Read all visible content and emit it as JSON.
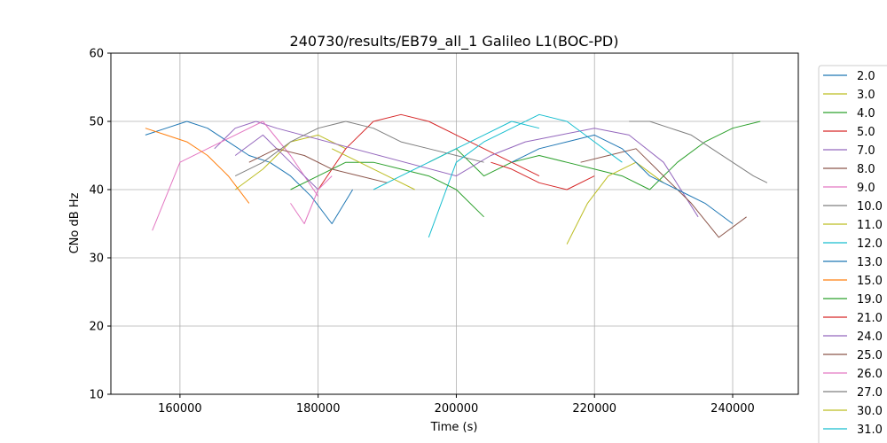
{
  "chart_data": {
    "type": "line",
    "title": "240730/results/EB79_all_1 Galileo L1(BOC-PD)",
    "xlabel": "Time (s)",
    "ylabel": "CNo dB Hz",
    "xlim": [
      150000,
      249500
    ],
    "ylim": [
      10,
      60
    ],
    "xticks": [
      160000,
      180000,
      200000,
      220000,
      240000
    ],
    "yticks": [
      10,
      20,
      30,
      40,
      50,
      60
    ],
    "grid": true,
    "legend_placement": "right, outside plot (clipped at bottom)",
    "series": [
      {
        "name": "2.0",
        "color": "#1f77b4",
        "x": [
          155000,
          158000,
          161000,
          164000,
          167000,
          170000,
          173000,
          176000,
          179000,
          182000,
          185000
        ],
        "y": [
          48,
          49,
          50,
          49,
          47,
          45,
          44,
          42,
          39,
          35,
          40
        ]
      },
      {
        "name": "3.0",
        "color": "#bcbd22",
        "x": [
          168000,
          172000,
          176000,
          180000,
          184000
        ],
        "y": [
          40,
          43,
          47,
          48,
          46
        ]
      },
      {
        "name": "4.0",
        "color": "#2ca02c",
        "x": [
          196000,
          200000,
          204000,
          208000,
          212000,
          216000,
          220000,
          224000,
          228000,
          232000,
          236000,
          240000,
          244000
        ],
        "y": [
          44,
          46,
          42,
          44,
          45,
          44,
          43,
          42,
          40,
          44,
          47,
          49,
          50
        ]
      },
      {
        "name": "5.0",
        "color": "#d62728",
        "x": [
          180000,
          184000,
          188000,
          192000,
          196000,
          200000,
          204000,
          208000,
          212000
        ],
        "y": [
          40,
          46,
          50,
          51,
          50,
          48,
          46,
          44,
          42
        ]
      },
      {
        "name": "7.0",
        "color": "#9467bd",
        "x": [
          165000,
          168000,
          171000,
          174000,
          200000,
          205000,
          210000,
          215000,
          220000,
          225000,
          230000,
          235000
        ],
        "y": [
          46,
          49,
          50,
          49,
          42,
          45,
          47,
          48,
          49,
          48,
          44,
          36
        ]
      },
      {
        "name": "8.0",
        "color": "#8c564b",
        "x": [
          218000,
          222000,
          226000,
          230000,
          234000,
          238000,
          242000
        ],
        "y": [
          44,
          45,
          46,
          42,
          38,
          33,
          36
        ]
      },
      {
        "name": "9.0",
        "color": "#e377c2",
        "x": [
          156000,
          160000,
          164000,
          168000,
          172000,
          176000,
          180000
        ],
        "y": [
          34,
          44,
          46,
          48,
          50,
          45,
          39
        ]
      },
      {
        "name": "10.0",
        "color": "#7f7f7f",
        "x": [
          168000,
          172000,
          176000,
          180000,
          184000,
          188000,
          192000,
          196000,
          200000,
          204000
        ],
        "y": [
          42,
          44,
          47,
          49,
          50,
          49,
          47,
          46,
          45,
          44
        ]
      },
      {
        "name": "11.0",
        "color": "#bcbd22",
        "x": [
          216000,
          219000,
          222000,
          226000,
          230000
        ],
        "y": [
          32,
          38,
          42,
          44,
          41
        ]
      },
      {
        "name": "12.0",
        "color": "#17becf",
        "x": [
          196000,
          200000,
          204000,
          208000,
          212000,
          216000,
          220000,
          224000
        ],
        "y": [
          33,
          44,
          47,
          49,
          51,
          50,
          47,
          44
        ]
      },
      {
        "name": "13.0",
        "color": "#1f77b4",
        "x": [
          208000,
          212000,
          216000,
          220000,
          224000,
          228000,
          232000,
          236000,
          240000
        ],
        "y": [
          44,
          46,
          47,
          48,
          46,
          42,
          40,
          38,
          35
        ]
      },
      {
        "name": "15.0",
        "color": "#ff7f0e",
        "x": [
          155000,
          158000,
          161000,
          164000,
          167000,
          170000
        ],
        "y": [
          49,
          48,
          47,
          45,
          42,
          38
        ]
      },
      {
        "name": "19.0",
        "color": "#2ca02c",
        "x": [
          176000,
          180000,
          184000,
          188000,
          192000,
          196000,
          200000,
          204000
        ],
        "y": [
          40,
          42,
          44,
          44,
          43,
          42,
          40,
          36
        ]
      },
      {
        "name": "21.0",
        "color": "#d62728",
        "x": [
          205000,
          208000,
          212000,
          216000,
          220000
        ],
        "y": [
          44,
          43,
          41,
          40,
          42
        ]
      },
      {
        "name": "24.0",
        "color": "#9467bd",
        "x": [
          168000,
          172000,
          176000,
          180000
        ],
        "y": [
          45,
          48,
          44,
          40
        ]
      },
      {
        "name": "25.0",
        "color": "#8c564b",
        "x": [
          170000,
          174000,
          178000,
          182000,
          186000,
          190000
        ],
        "y": [
          44,
          46,
          45,
          43,
          42,
          41
        ]
      },
      {
        "name": "26.0",
        "color": "#e377c2",
        "x": [
          176000,
          178000,
          180000,
          182000
        ],
        "y": [
          38,
          35,
          40,
          42
        ]
      },
      {
        "name": "27.0",
        "color": "#7f7f7f",
        "x": [
          225000,
          228000,
          231000,
          234000,
          237000,
          240000,
          243000,
          245000
        ],
        "y": [
          50,
          50,
          49,
          48,
          46,
          44,
          42,
          41
        ]
      },
      {
        "name": "30.0",
        "color": "#bcbd22",
        "x": [
          182000,
          186000,
          190000,
          194000
        ],
        "y": [
          46,
          44,
          42,
          40
        ]
      },
      {
        "name": "31.0",
        "color": "#17becf",
        "x": [
          188000,
          192000,
          196000,
          200000,
          204000,
          208000,
          212000
        ],
        "y": [
          40,
          42,
          44,
          46,
          48,
          50,
          49
        ]
      }
    ]
  }
}
